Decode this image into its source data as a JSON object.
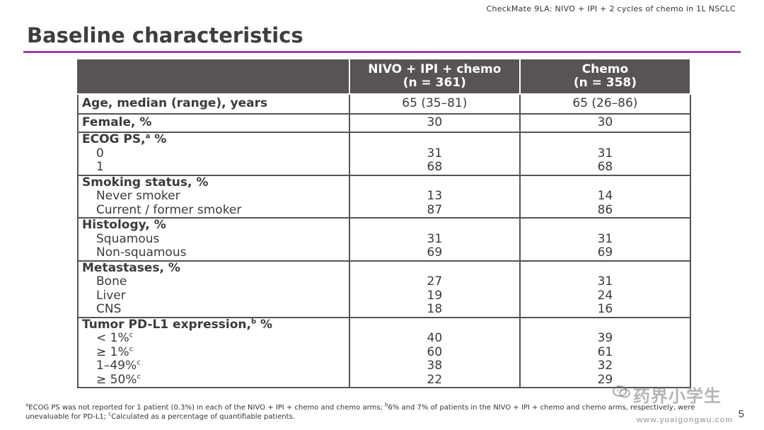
{
  "header": {
    "reference": "CheckMate 9LA: NIVO + IPI + 2 cycles of chemo in 1L NSCLC",
    "title": "Baseline characteristics"
  },
  "table": {
    "columns": {
      "arm1_name": "NIVO + IPI + chemo",
      "arm1_n": "(n = 361)",
      "arm2_name": "Chemo",
      "arm2_n": "(n = 358)"
    },
    "age": {
      "label": "Age, median (range), years",
      "arm1": "65 (35–81)",
      "arm2": "65 (26–86)"
    },
    "female": {
      "label": "Female, %",
      "arm1": "30",
      "arm2": "30"
    },
    "ecog": {
      "label": "ECOG PS,",
      "sup": "a",
      "suffix": " %",
      "rows": [
        {
          "label": "0",
          "arm1": "31",
          "arm2": "31"
        },
        {
          "label": "1",
          "arm1": "68",
          "arm2": "68"
        }
      ]
    },
    "smoking": {
      "label": "Smoking status, %",
      "rows": [
        {
          "label": "Never smoker",
          "arm1": "13",
          "arm2": "14"
        },
        {
          "label": "Current / former smoker",
          "arm1": "87",
          "arm2": "86"
        }
      ]
    },
    "histology": {
      "label": "Histology, %",
      "rows": [
        {
          "label": "Squamous",
          "arm1": "31",
          "arm2": "31"
        },
        {
          "label": "Non-squamous",
          "arm1": "69",
          "arm2": "69"
        }
      ]
    },
    "metastases": {
      "label": "Metastases, %",
      "rows": [
        {
          "label": "Bone",
          "arm1": "27",
          "arm2": "31"
        },
        {
          "label": "Liver",
          "arm1": "19",
          "arm2": "24"
        },
        {
          "label": "CNS",
          "arm1": "18",
          "arm2": "16"
        }
      ]
    },
    "pdl1": {
      "label": "Tumor PD-L1 expression,",
      "sup": "b",
      "suffix": " %",
      "row_sup": "c",
      "rows": [
        {
          "label": "< 1%",
          "arm1": "40",
          "arm2": "39"
        },
        {
          "label": "≥ 1%",
          "arm1": "60",
          "arm2": "61"
        },
        {
          "label": "1–49%",
          "arm1": "38",
          "arm2": "32"
        },
        {
          "label": "≥ 50%",
          "arm1": "22",
          "arm2": "29"
        }
      ]
    }
  },
  "footnote": {
    "a_mark": "a",
    "a_text": "ECOG PS was not reported for 1 patient (0.3%) in each of the NIVO + IPI + chemo and chemo arms; ",
    "b_mark": "b",
    "b_text": "6% and 7% of patients in the NIVO + IPI + chemo and chemo arms, respectively, were unevaluable for PD-L1; ",
    "c_mark": "c",
    "c_text": "Calculated as a percentage of quantifiable patients."
  },
  "page_number": "5",
  "watermark": {
    "text": "药界小学生",
    "url": "www.yuaigongwu.com",
    "icon": "wechat-icon"
  },
  "colors": {
    "header_bg": "#595454",
    "accent_rule": "#a23fa8",
    "text": "#3b3b3b"
  }
}
